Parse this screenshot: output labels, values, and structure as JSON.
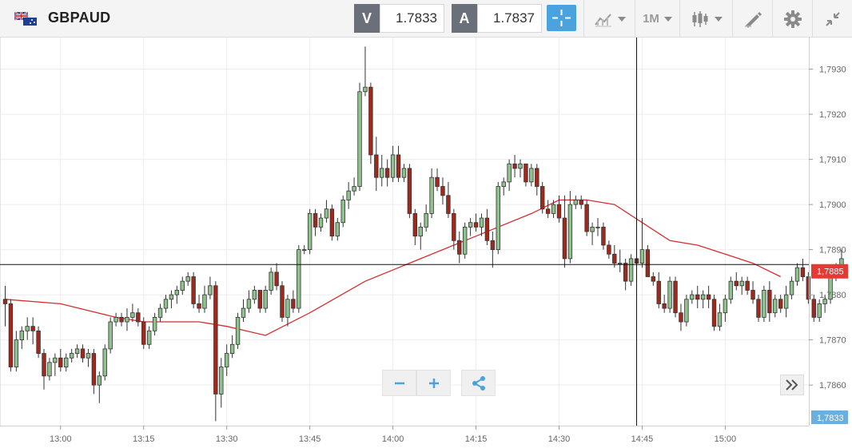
{
  "toolbar": {
    "symbol": "GBPAUD",
    "flag_icon": "gb-au-flags-icon",
    "bid_label": "V",
    "bid_value": "1.7833",
    "ask_label": "A",
    "ask_value": "1.7837",
    "timeframe": "1M",
    "icons": [
      "crosshair-icon",
      "indicators-icon",
      "timeframe-dropdown",
      "candlestick-type-icon",
      "drawing-tool-icon",
      "gear-icon",
      "collapse-icon"
    ]
  },
  "chart_data": {
    "type": "candlestick",
    "symbol": "GBPAUD",
    "x_tick_labels": [
      "13:00",
      "13:15",
      "13:30",
      "13:45",
      "14:00",
      "14:15",
      "14:30",
      "14:45",
      "15:00"
    ],
    "y_tick_labels": [
      "1,7930",
      "1,7920",
      "1,7910",
      "1,7900",
      "1,7890",
      "1,7880",
      "1,7870",
      "1,7860"
    ],
    "ylim": [
      1.7851,
      1.7937
    ],
    "interval_minutes": 1,
    "first_candle_time": "12:50",
    "candles": [
      [
        1.7879,
        1.7882,
        1.7873,
        1.7878
      ],
      [
        1.7878,
        1.7879,
        1.7863,
        1.7864
      ],
      [
        1.7864,
        1.7872,
        1.7863,
        1.787
      ],
      [
        1.787,
        1.7873,
        1.7868,
        1.7872
      ],
      [
        1.7872,
        1.7875,
        1.787,
        1.7873
      ],
      [
        1.7873,
        1.7875,
        1.7869,
        1.7872
      ],
      [
        1.7872,
        1.7873,
        1.7866,
        1.7867
      ],
      [
        1.7867,
        1.7868,
        1.7859,
        1.7862
      ],
      [
        1.7862,
        1.7866,
        1.7861,
        1.7865
      ],
      [
        1.7865,
        1.7867,
        1.7862,
        1.7866
      ],
      [
        1.7866,
        1.7868,
        1.7863,
        1.7864
      ],
      [
        1.7864,
        1.7867,
        1.7863,
        1.7866
      ],
      [
        1.7866,
        1.7868,
        1.7865,
        1.7867
      ],
      [
        1.7867,
        1.7869,
        1.7866,
        1.7868
      ],
      [
        1.7868,
        1.7869,
        1.7865,
        1.7866
      ],
      [
        1.7866,
        1.7868,
        1.7864,
        1.7867
      ],
      [
        1.7867,
        1.7868,
        1.7858,
        1.786
      ],
      [
        1.786,
        1.7863,
        1.7856,
        1.7862
      ],
      [
        1.7862,
        1.7869,
        1.7861,
        1.7868
      ],
      [
        1.7868,
        1.7875,
        1.7867,
        1.7874
      ],
      [
        1.7874,
        1.7876,
        1.7873,
        1.7875
      ],
      [
        1.7875,
        1.7876,
        1.7873,
        1.7874
      ],
      [
        1.7874,
        1.7877,
        1.7872,
        1.7875
      ],
      [
        1.7875,
        1.7878,
        1.7874,
        1.7876
      ],
      [
        1.7876,
        1.7877,
        1.7873,
        1.7874
      ],
      [
        1.7874,
        1.7875,
        1.7868,
        1.7869
      ],
      [
        1.7869,
        1.7873,
        1.7868,
        1.7872
      ],
      [
        1.7872,
        1.7876,
        1.7871,
        1.7875
      ],
      [
        1.7875,
        1.7878,
        1.7874,
        1.7877
      ],
      [
        1.7877,
        1.788,
        1.7876,
        1.7879
      ],
      [
        1.7879,
        1.7881,
        1.7877,
        1.788
      ],
      [
        1.788,
        1.7882,
        1.7878,
        1.7881
      ],
      [
        1.7881,
        1.7884,
        1.788,
        1.7883
      ],
      [
        1.7883,
        1.7885,
        1.7882,
        1.7884
      ],
      [
        1.7884,
        1.7885,
        1.7877,
        1.7878
      ],
      [
        1.7878,
        1.788,
        1.7876,
        1.7877
      ],
      [
        1.7877,
        1.7882,
        1.7876,
        1.788
      ],
      [
        1.788,
        1.7884,
        1.7879,
        1.7882
      ],
      [
        1.7882,
        1.7883,
        1.7852,
        1.7858
      ],
      [
        1.7858,
        1.7866,
        1.7855,
        1.7864
      ],
      [
        1.7864,
        1.7869,
        1.7862,
        1.7867
      ],
      [
        1.7867,
        1.7871,
        1.7866,
        1.7869
      ],
      [
        1.7869,
        1.7876,
        1.7868,
        1.7875
      ],
      [
        1.7875,
        1.7879,
        1.7874,
        1.7877
      ],
      [
        1.7877,
        1.7881,
        1.7876,
        1.7879
      ],
      [
        1.7879,
        1.7882,
        1.7878,
        1.7881
      ],
      [
        1.7881,
        1.7881,
        1.7876,
        1.7877
      ],
      [
        1.7877,
        1.7882,
        1.7876,
        1.7881
      ],
      [
        1.7881,
        1.7886,
        1.788,
        1.7885
      ],
      [
        1.7885,
        1.7887,
        1.7881,
        1.7882
      ],
      [
        1.7882,
        1.7883,
        1.7874,
        1.7875
      ],
      [
        1.7875,
        1.788,
        1.7873,
        1.7879
      ],
      [
        1.7879,
        1.7881,
        1.7876,
        1.7877
      ],
      [
        1.7877,
        1.7891,
        1.7876,
        1.789
      ],
      [
        1.789,
        1.7891,
        1.7889,
        1.789
      ],
      [
        1.789,
        1.7899,
        1.7889,
        1.7898
      ],
      [
        1.7898,
        1.7899,
        1.7893,
        1.7895
      ],
      [
        1.7895,
        1.7898,
        1.7894,
        1.7897
      ],
      [
        1.7897,
        1.7901,
        1.7896,
        1.7899
      ],
      [
        1.7899,
        1.79,
        1.7892,
        1.7893
      ],
      [
        1.7893,
        1.7897,
        1.7892,
        1.7896
      ],
      [
        1.7896,
        1.7902,
        1.7895,
        1.7901
      ],
      [
        1.7901,
        1.7905,
        1.7899,
        1.7903
      ],
      [
        1.7903,
        1.7906,
        1.7902,
        1.7904
      ],
      [
        1.7904,
        1.7927,
        1.7903,
        1.7925
      ],
      [
        1.7925,
        1.7935,
        1.7924,
        1.7926
      ],
      [
        1.7926,
        1.7927,
        1.7909,
        1.7911
      ],
      [
        1.7911,
        1.7915,
        1.7903,
        1.7906
      ],
      [
        1.7906,
        1.7911,
        1.7904,
        1.7908
      ],
      [
        1.7908,
        1.791,
        1.7904,
        1.7906
      ],
      [
        1.7906,
        1.7913,
        1.7905,
        1.7911
      ],
      [
        1.7911,
        1.7913,
        1.7905,
        1.7906
      ],
      [
        1.7906,
        1.7909,
        1.7905,
        1.7908
      ],
      [
        1.7908,
        1.7909,
        1.7897,
        1.7898
      ],
      [
        1.7898,
        1.7899,
        1.7891,
        1.7893
      ],
      [
        1.7893,
        1.7896,
        1.789,
        1.7895
      ],
      [
        1.7895,
        1.79,
        1.7894,
        1.7898
      ],
      [
        1.7898,
        1.7908,
        1.7897,
        1.7906
      ],
      [
        1.7906,
        1.7908,
        1.7903,
        1.7904
      ],
      [
        1.7904,
        1.7906,
        1.79,
        1.7902
      ],
      [
        1.7902,
        1.7905,
        1.7897,
        1.7898
      ],
      [
        1.7898,
        1.7899,
        1.789,
        1.7892
      ],
      [
        1.7892,
        1.7894,
        1.7887,
        1.7889
      ],
      [
        1.7889,
        1.7896,
        1.7888,
        1.7895
      ],
      [
        1.7895,
        1.7897,
        1.7893,
        1.7896
      ],
      [
        1.7896,
        1.7898,
        1.7894,
        1.7895
      ],
      [
        1.7895,
        1.7898,
        1.7893,
        1.7897
      ],
      [
        1.7897,
        1.7899,
        1.7891,
        1.7892
      ],
      [
        1.7892,
        1.7894,
        1.7886,
        1.789
      ],
      [
        1.789,
        1.7905,
        1.7889,
        1.7904
      ],
      [
        1.7904,
        1.7906,
        1.7902,
        1.7905
      ],
      [
        1.7905,
        1.791,
        1.7903,
        1.7909
      ],
      [
        1.7909,
        1.7911,
        1.7906,
        1.7908
      ],
      [
        1.7908,
        1.791,
        1.7906,
        1.7909
      ],
      [
        1.7909,
        1.7909,
        1.7904,
        1.7905
      ],
      [
        1.7905,
        1.7909,
        1.7904,
        1.7908
      ],
      [
        1.7908,
        1.7909,
        1.7902,
        1.7904
      ],
      [
        1.7904,
        1.7905,
        1.7898,
        1.7899
      ],
      [
        1.7899,
        1.7901,
        1.7897,
        1.7898
      ],
      [
        1.7898,
        1.7901,
        1.7897,
        1.79
      ],
      [
        1.79,
        1.7902,
        1.7896,
        1.7897
      ],
      [
        1.7897,
        1.7902,
        1.7886,
        1.7888
      ],
      [
        1.7888,
        1.7903,
        1.7887,
        1.79
      ],
      [
        1.79,
        1.7902,
        1.7899,
        1.7901
      ],
      [
        1.7901,
        1.7902,
        1.7899,
        1.79
      ],
      [
        1.79,
        1.7901,
        1.7893,
        1.7894
      ],
      [
        1.7894,
        1.7896,
        1.7891,
        1.7895
      ],
      [
        1.7895,
        1.7897,
        1.7893,
        1.7895
      ],
      [
        1.7895,
        1.7896,
        1.789,
        1.7891
      ],
      [
        1.7891,
        1.7892,
        1.7888,
        1.7889
      ],
      [
        1.7889,
        1.7891,
        1.7886,
        1.7887
      ],
      [
        1.7887,
        1.789,
        1.7885,
        1.7887
      ],
      [
        1.7887,
        1.7888,
        1.7881,
        1.7883
      ],
      [
        1.7883,
        1.7889,
        1.7882,
        1.7888
      ],
      [
        1.7888,
        1.789,
        1.7886,
        1.7887
      ],
      [
        1.7887,
        1.7897,
        1.7886,
        1.789
      ],
      [
        1.789,
        1.7891,
        1.7884,
        1.7884
      ],
      [
        1.7884,
        1.7885,
        1.7882,
        1.7883
      ],
      [
        1.7883,
        1.7885,
        1.7877,
        1.7878
      ],
      [
        1.7878,
        1.788,
        1.7876,
        1.7877
      ],
      [
        1.7877,
        1.7884,
        1.7876,
        1.7883
      ],
      [
        1.7883,
        1.7884,
        1.7875,
        1.7876
      ],
      [
        1.7876,
        1.7878,
        1.7872,
        1.7874
      ],
      [
        1.7874,
        1.788,
        1.7873,
        1.7879
      ],
      [
        1.7879,
        1.7881,
        1.7878,
        1.788
      ],
      [
        1.788,
        1.7882,
        1.7877,
        1.7879
      ],
      [
        1.7879,
        1.7881,
        1.7877,
        1.788
      ],
      [
        1.788,
        1.7882,
        1.7877,
        1.7879
      ],
      [
        1.7879,
        1.788,
        1.7872,
        1.7873
      ],
      [
        1.7873,
        1.7878,
        1.7872,
        1.7876
      ],
      [
        1.7876,
        1.788,
        1.7874,
        1.7879
      ],
      [
        1.7879,
        1.7884,
        1.7878,
        1.7883
      ],
      [
        1.7883,
        1.7885,
        1.7881,
        1.7882
      ],
      [
        1.7882,
        1.7884,
        1.788,
        1.7883
      ],
      [
        1.7883,
        1.7884,
        1.788,
        1.7881
      ],
      [
        1.7881,
        1.7883,
        1.7878,
        1.7879
      ],
      [
        1.7879,
        1.788,
        1.7874,
        1.7875
      ],
      [
        1.7875,
        1.7882,
        1.7874,
        1.7881
      ],
      [
        1.7881,
        1.7883,
        1.7874,
        1.7876
      ],
      [
        1.7876,
        1.788,
        1.7875,
        1.7879
      ],
      [
        1.7879,
        1.788,
        1.7876,
        1.7877
      ],
      [
        1.7877,
        1.7882,
        1.7875,
        1.788
      ],
      [
        1.788,
        1.7884,
        1.7879,
        1.7883
      ],
      [
        1.7883,
        1.7887,
        1.7882,
        1.7886
      ],
      [
        1.7886,
        1.7888,
        1.7883,
        1.7884
      ],
      [
        1.7884,
        1.7885,
        1.7878,
        1.7879
      ],
      [
        1.7879,
        1.788,
        1.7874,
        1.7875
      ],
      [
        1.7875,
        1.7879,
        1.7874,
        1.7878
      ],
      [
        1.7878,
        1.788,
        1.7876,
        1.7879
      ],
      [
        1.7879,
        1.7886,
        1.7878,
        1.7885
      ],
      [
        1.7885,
        1.7887,
        1.7883,
        1.7886
      ],
      [
        1.7886,
        1.789,
        1.7885,
        1.7888
      ]
    ],
    "moving_average": {
      "color": "#d32f2f",
      "x_times": [
        "12:50",
        "13:00",
        "13:10",
        "13:15",
        "13:25",
        "13:30",
        "13:37",
        "13:45",
        "13:55",
        "14:05",
        "14:15",
        "14:25",
        "14:30",
        "14:35",
        "14:40",
        "14:45",
        "14:50",
        "14:55",
        "15:00",
        "15:05",
        "15:10"
      ],
      "values": [
        1.7879,
        1.7878,
        1.7875,
        1.7874,
        1.7874,
        1.7873,
        1.7871,
        1.7876,
        1.7883,
        1.7888,
        1.7893,
        1.7898,
        1.7901,
        1.7901,
        1.79,
        1.7896,
        1.7892,
        1.7891,
        1.7889,
        1.7887,
        1.7884
      ]
    },
    "horizontal_line_level": 1.78867,
    "vertical_line_time": "14:44",
    "current_price_label": "1,7885",
    "current_price_level": 1.78852,
    "bid_price_label": "1,7833",
    "up_color": "#8fc28c",
    "down_color": "#a3281c",
    "grid": true
  },
  "colors": {
    "accent": "#4aa3df",
    "price_marker": "#e53935",
    "bid_marker": "#6ab0de"
  }
}
